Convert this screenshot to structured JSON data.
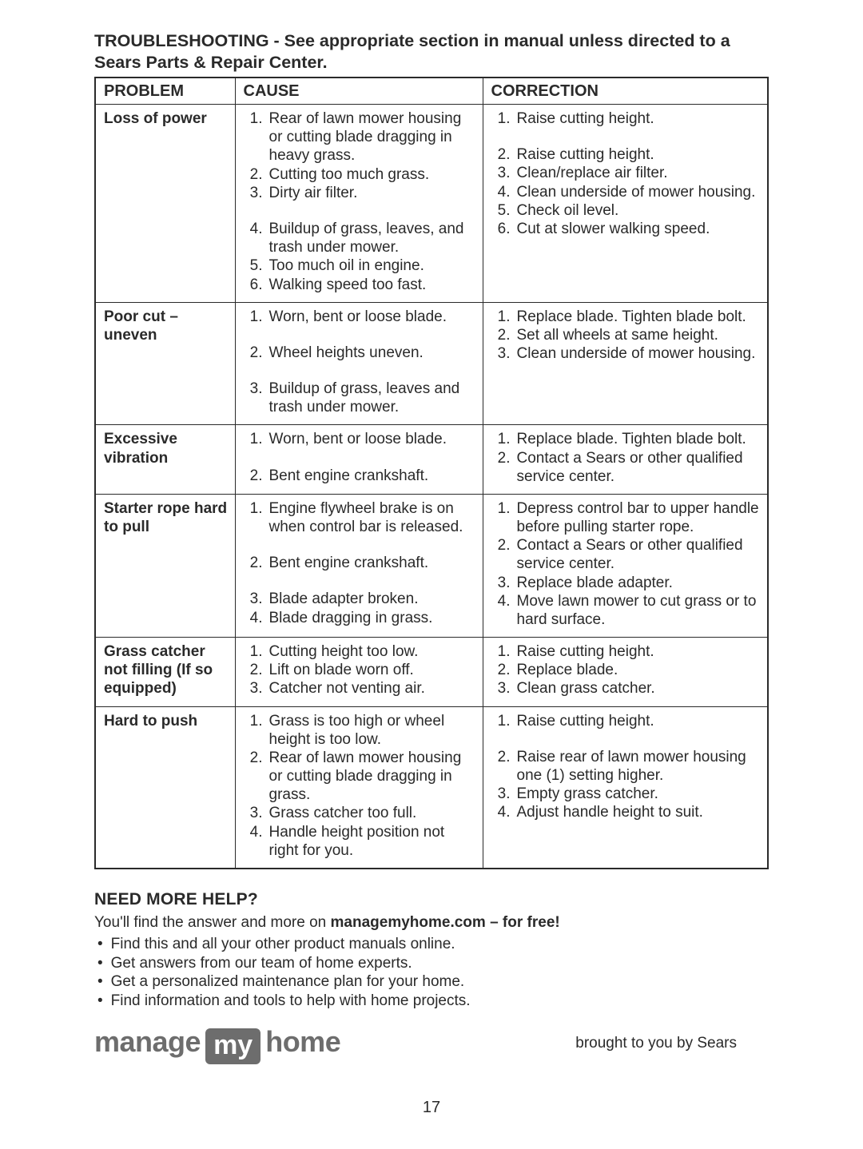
{
  "title": "TROUBLESHOOTING - See appropriate section in manual unless directed to a Sears Parts & Repair Center.",
  "headers": {
    "problem": "PROBLEM",
    "cause": "CAUSE",
    "correction": "CORRECTION"
  },
  "rows": [
    {
      "problem": "Loss of power",
      "causes": [
        "Rear of lawn mower housing or cutting blade dragging in heavy grass.",
        "Cutting too much grass.",
        "Dirty air filter.",
        "Buildup of grass, leaves, and trash under mower.",
        "Too much oil in engine.",
        "Walking speed too fast."
      ],
      "corrections": [
        "Raise cutting height.",
        "Raise cutting height.",
        "Clean/replace air filter.",
        "Clean underside of mower housing.",
        "Check oil level.",
        "Cut at slower walking speed."
      ],
      "cause_gap_after": [
        2
      ],
      "corr_gap_after": [
        0
      ]
    },
    {
      "problem": "Poor cut – uneven",
      "causes": [
        "Worn, bent or loose blade.",
        "Wheel heights uneven.",
        "Buildup of grass, leaves and trash under mower."
      ],
      "corrections": [
        "Replace blade. Tighten blade bolt.",
        "Set all wheels at same height.",
        "Clean underside of mower housing."
      ],
      "cause_gap_after": [
        0,
        1
      ]
    },
    {
      "problem": "Excessive vibration",
      "causes": [
        "Worn, bent or loose blade.",
        "Bent engine crankshaft."
      ],
      "corrections": [
        "Replace blade. Tighten blade bolt.",
        "Contact a Sears or other qualified service center."
      ],
      "cause_gap_after": [
        0
      ]
    },
    {
      "problem": "Starter rope hard to pull",
      "causes": [
        "Engine flywheel brake is on when control bar is released.",
        "Bent engine crankshaft.",
        "Blade adapter broken.",
        "Blade dragging in grass."
      ],
      "corrections": [
        "Depress control bar to upper handle before pulling starter rope.",
        "Contact a Sears or other qualified service center.",
        "Replace blade adapter.",
        "Move lawn mower to cut grass or to hard surface."
      ],
      "cause_gap_after": [
        0,
        1
      ]
    },
    {
      "problem": "Grass catcher not filling (If so equipped)",
      "causes": [
        "Cutting height too low.",
        "Lift on blade worn off.",
        "Catcher not venting air."
      ],
      "corrections": [
        "Raise cutting height.",
        "Replace blade.",
        "Clean grass catcher."
      ]
    },
    {
      "problem": "Hard to push",
      "causes": [
        "Grass is too high or wheel height is too low.",
        "Rear of lawn mower housing or cutting blade dragging in grass.",
        "Grass catcher too full.",
        "Handle height position not right for you."
      ],
      "corrections": [
        "Raise cutting height.",
        "Raise rear of lawn mower housing one (1) setting higher.",
        "Empty grass catcher.",
        "Adjust handle height to suit."
      ],
      "corr_gap_after": [
        0
      ]
    }
  ],
  "help": {
    "heading": "NEED MORE HELP?",
    "line_pre": "You'll find the answer and more on ",
    "line_bold": "managemyhome.com – for free!",
    "bullets": [
      "Find this and all your other product manuals online.",
      "Get answers from our team of home experts.",
      "Get a personalized maintenance plan for your home.",
      "Find information and tools to help with home projects."
    ]
  },
  "logo": {
    "w1": "manage",
    "badge": "my",
    "w3": "home"
  },
  "brought": "brought to you by Sears",
  "page_num": "17"
}
